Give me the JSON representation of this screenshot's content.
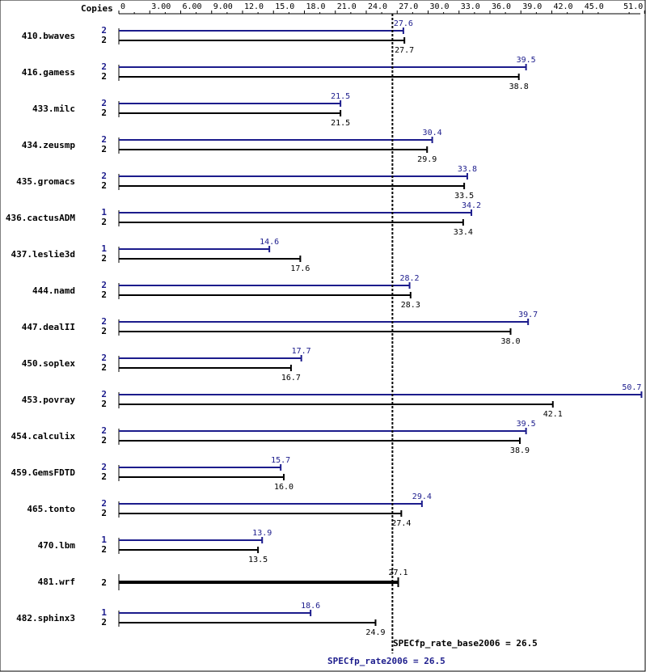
{
  "chart_data": {
    "type": "bar",
    "axis_header": "Copies",
    "xticks": [
      "0",
      "3.00",
      "6.00",
      "9.00",
      "12.0",
      "15.0",
      "18.0",
      "21.0",
      "24.0",
      "27.0",
      "30.0",
      "33.0",
      "36.0",
      "39.0",
      "42.0",
      "45.0",
      "51.0"
    ],
    "xlim": [
      0,
      51.0
    ],
    "colors": {
      "peak": "#1c1c8c",
      "base": "#000000"
    },
    "benchmarks": [
      {
        "name": "410.bwaves",
        "peak_copies": "2",
        "base_copies": "2",
        "peak": 27.6,
        "base": 27.7
      },
      {
        "name": "416.gamess",
        "peak_copies": "2",
        "base_copies": "2",
        "peak": 39.5,
        "base": 38.8
      },
      {
        "name": "433.milc",
        "peak_copies": "2",
        "base_copies": "2",
        "peak": 21.5,
        "base": 21.5
      },
      {
        "name": "434.zeusmp",
        "peak_copies": "2",
        "base_copies": "2",
        "peak": 30.4,
        "base": 29.9
      },
      {
        "name": "435.gromacs",
        "peak_copies": "2",
        "base_copies": "2",
        "peak": 33.8,
        "base": 33.5
      },
      {
        "name": "436.cactusADM",
        "peak_copies": "1",
        "base_copies": "2",
        "peak": 34.2,
        "base": 33.4
      },
      {
        "name": "437.leslie3d",
        "peak_copies": "1",
        "base_copies": "2",
        "peak": 14.6,
        "base": 17.6
      },
      {
        "name": "444.namd",
        "peak_copies": "2",
        "base_copies": "2",
        "peak": 28.2,
        "base": 28.3
      },
      {
        "name": "447.dealII",
        "peak_copies": "2",
        "base_copies": "2",
        "peak": 39.7,
        "base": 38.0
      },
      {
        "name": "450.soplex",
        "peak_copies": "2",
        "base_copies": "2",
        "peak": 17.7,
        "base": 16.7
      },
      {
        "name": "453.povray",
        "peak_copies": "2",
        "base_copies": "2",
        "peak": 50.7,
        "base": 42.1
      },
      {
        "name": "454.calculix",
        "peak_copies": "2",
        "base_copies": "2",
        "peak": 39.5,
        "base": 38.9
      },
      {
        "name": "459.GemsFDTD",
        "peak_copies": "2",
        "base_copies": "2",
        "peak": 15.7,
        "base": 16.0
      },
      {
        "name": "465.tonto",
        "peak_copies": "2",
        "base_copies": "2",
        "peak": 29.4,
        "base": 27.4
      },
      {
        "name": "470.lbm",
        "peak_copies": "1",
        "base_copies": "2",
        "peak": 13.9,
        "base": 13.5
      },
      {
        "name": "481.wrf",
        "peak_copies": null,
        "base_copies": "2",
        "peak": null,
        "base": 27.1
      },
      {
        "name": "482.sphinx3",
        "peak_copies": "1",
        "base_copies": "2",
        "peak": 18.6,
        "base": 24.9
      }
    ],
    "summary": {
      "base_label": "SPECfp_rate_base2006 = 26.5",
      "base_value": 26.5,
      "peak_label": "SPECfp_rate2006 = 26.5",
      "peak_value": 26.5
    }
  }
}
